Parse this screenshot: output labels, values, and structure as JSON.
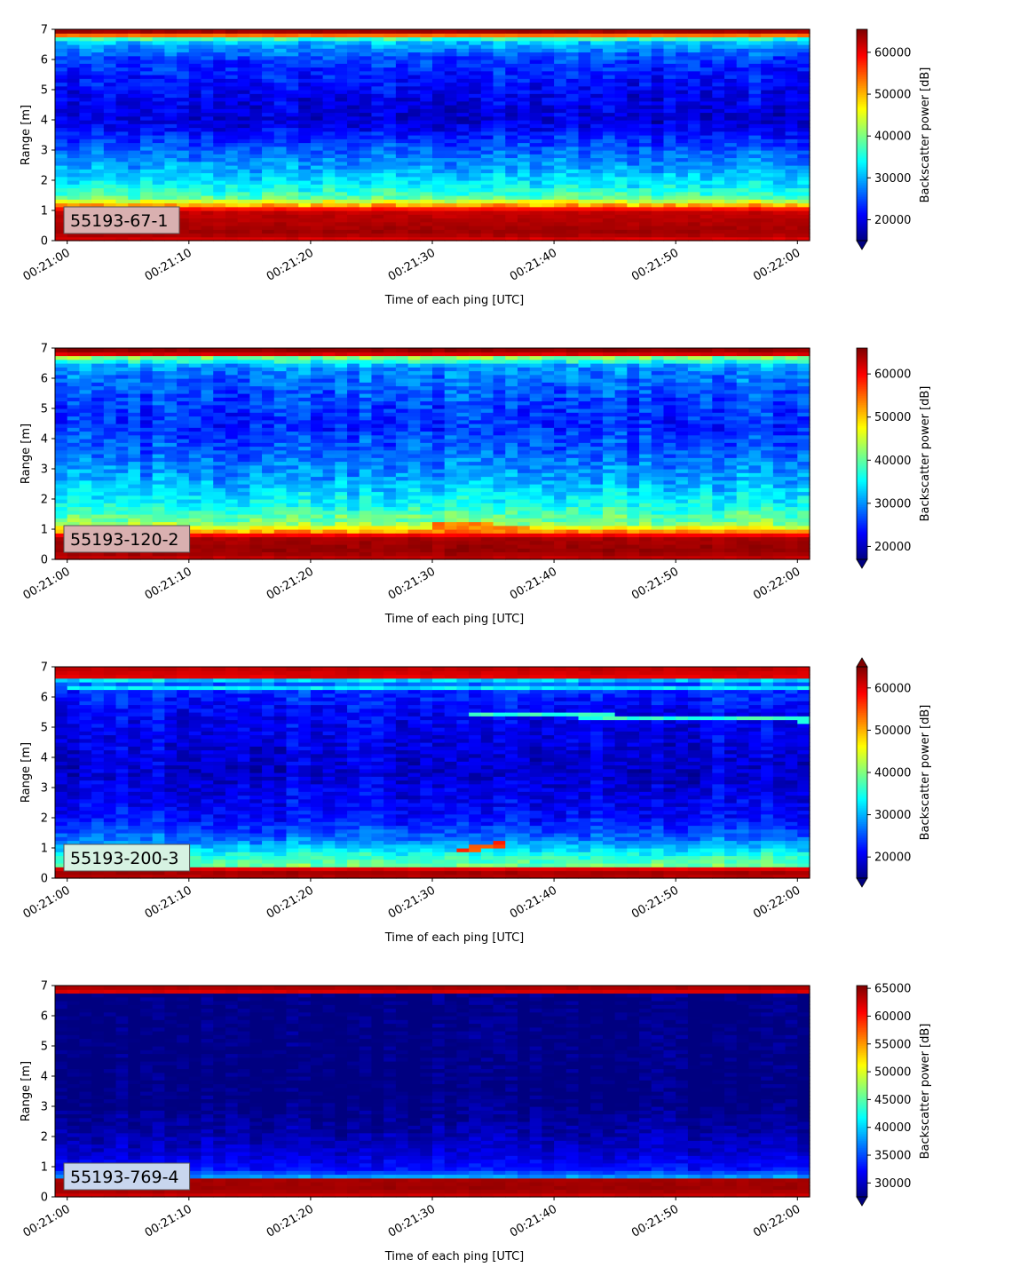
{
  "chart_data": [
    {
      "type": "heatmap",
      "panel_label": "55193-67-1",
      "label_box_color": "#d9b0b0",
      "xlabel": "Time of each ping [UTC]",
      "ylabel": "Range [m]",
      "x_ticks": [
        "00:21:00",
        "00:21:10",
        "00:21:20",
        "00:21:30",
        "00:21:40",
        "00:21:50",
        "00:22:00"
      ],
      "xlim_seconds": [
        -1,
        61
      ],
      "y_ticks": [
        "0",
        "1",
        "2",
        "3",
        "4",
        "5",
        "6",
        "7"
      ],
      "ylim": [
        0,
        7
      ],
      "colorbar_label": "Backscatter power [dB]",
      "colorbar_ticks": [
        "20000",
        "30000",
        "40000",
        "50000",
        "60000"
      ],
      "colorbar_range": [
        15000,
        65500
      ],
      "colorbar_extend": "min",
      "colormap": "jet",
      "profile": [
        {
          "range": 0.0,
          "value": 60000
        },
        {
          "range": 0.25,
          "value": 64000
        },
        {
          "range": 1.0,
          "value": 62000
        },
        {
          "range": 1.2,
          "value": 50000
        },
        {
          "range": 1.45,
          "value": 38000
        },
        {
          "range": 1.9,
          "value": 33000
        },
        {
          "range": 2.5,
          "value": 29000
        },
        {
          "range": 3.0,
          "value": 26000
        },
        {
          "range": 4.0,
          "value": 19000
        },
        {
          "range": 5.0,
          "value": 21000
        },
        {
          "range": 6.0,
          "value": 24000
        },
        {
          "range": 6.55,
          "value": 30000
        },
        {
          "range": 6.75,
          "value": 40000
        },
        {
          "range": 6.85,
          "value": 62000
        },
        {
          "range": 7.0,
          "value": 65000
        }
      ],
      "noise": 3200,
      "features": []
    },
    {
      "type": "heatmap",
      "panel_label": "55193-120-2",
      "label_box_color": "#d9b0b0",
      "xlabel": "Time of each ping [UTC]",
      "ylabel": "Range [m]",
      "x_ticks": [
        "00:21:00",
        "00:21:10",
        "00:21:20",
        "00:21:30",
        "00:21:40",
        "00:21:50",
        "00:22:00"
      ],
      "xlim_seconds": [
        -1,
        61
      ],
      "y_ticks": [
        "0",
        "1",
        "2",
        "3",
        "4",
        "5",
        "6",
        "7"
      ],
      "ylim": [
        0,
        7
      ],
      "colorbar_label": "Backscatter power [dB]",
      "colorbar_ticks": [
        "20000",
        "30000",
        "40000",
        "50000",
        "60000"
      ],
      "colorbar_range": [
        17000,
        66000
      ],
      "colorbar_extend": "min",
      "colormap": "jet",
      "profile": [
        {
          "range": 0.0,
          "value": 62000
        },
        {
          "range": 0.25,
          "value": 65000
        },
        {
          "range": 0.75,
          "value": 64000
        },
        {
          "range": 0.95,
          "value": 52000
        },
        {
          "range": 1.2,
          "value": 42000
        },
        {
          "range": 1.8,
          "value": 36000
        },
        {
          "range": 2.5,
          "value": 32000
        },
        {
          "range": 3.5,
          "value": 28000
        },
        {
          "range": 4.5,
          "value": 25000
        },
        {
          "range": 5.5,
          "value": 27000
        },
        {
          "range": 6.4,
          "value": 30000
        },
        {
          "range": 6.7,
          "value": 42000
        },
        {
          "range": 6.82,
          "value": 63000
        },
        {
          "range": 7.0,
          "value": 66000
        }
      ],
      "noise": 3500,
      "features": [
        {
          "t0": 30,
          "t1": 38,
          "r0": 1.05,
          "r1": 0.95,
          "thick": 0.35,
          "value": 54000
        }
      ]
    },
    {
      "type": "heatmap",
      "panel_label": "55193-200-3",
      "label_box_color": "#d6f2e2",
      "xlabel": "Time of each ping [UTC]",
      "ylabel": "Range [m]",
      "x_ticks": [
        "00:21:00",
        "00:21:10",
        "00:21:20",
        "00:21:30",
        "00:21:40",
        "00:21:50",
        "00:22:00"
      ],
      "xlim_seconds": [
        -1,
        61
      ],
      "y_ticks": [
        "0",
        "1",
        "2",
        "3",
        "4",
        "5",
        "6",
        "7"
      ],
      "ylim": [
        0,
        7
      ],
      "colorbar_label": "Backscatter power [dB]",
      "colorbar_ticks": [
        "20000",
        "30000",
        "40000",
        "50000",
        "60000"
      ],
      "colorbar_range": [
        15000,
        65000
      ],
      "colorbar_extend": "both",
      "colormap": "jet",
      "profile": [
        {
          "range": 0.0,
          "value": 62000
        },
        {
          "range": 0.3,
          "value": 64000
        },
        {
          "range": 0.38,
          "value": 40000
        },
        {
          "range": 0.8,
          "value": 35000
        },
        {
          "range": 1.3,
          "value": 27000
        },
        {
          "range": 2.0,
          "value": 22000
        },
        {
          "range": 3.5,
          "value": 19000
        },
        {
          "range": 5.5,
          "value": 21000
        },
        {
          "range": 6.3,
          "value": 24000
        },
        {
          "range": 6.55,
          "value": 28000
        },
        {
          "range": 6.65,
          "value": 60000
        },
        {
          "range": 7.0,
          "value": 62000
        }
      ],
      "noise": 3000,
      "features": [
        {
          "t0": 32,
          "t1": 36,
          "r0": 0.9,
          "r1": 1.15,
          "thick": 0.12,
          "value": 56000
        },
        {
          "t0": 33,
          "t1": 61,
          "r0": 5.45,
          "r1": 5.25,
          "thick": 0.1,
          "value": 36000
        },
        {
          "t0": 0,
          "t1": 61,
          "r0": 6.35,
          "r1": 6.3,
          "thick": 0.08,
          "value": 33000
        }
      ]
    },
    {
      "type": "heatmap",
      "panel_label": "55193-769-4",
      "label_box_color": "#c8d6ee",
      "xlabel": "Time of each ping [UTC]",
      "ylabel": "Range [m]",
      "x_ticks": [
        "00:21:00",
        "00:21:10",
        "00:21:20",
        "00:21:30",
        "00:21:40",
        "00:21:50",
        "00:22:00"
      ],
      "xlim_seconds": [
        -1,
        61
      ],
      "y_ticks": [
        "0",
        "1",
        "2",
        "3",
        "4",
        "5",
        "6",
        "7"
      ],
      "ylim": [
        0,
        7
      ],
      "colorbar_label": "Backscatter power [dB]",
      "colorbar_ticks": [
        "30000",
        "35000",
        "40000",
        "45000",
        "50000",
        "55000",
        "60000",
        "65000"
      ],
      "colorbar_range": [
        27500,
        65500
      ],
      "colorbar_extend": "min",
      "colormap": "jet",
      "profile": [
        {
          "range": 0.0,
          "value": 62000
        },
        {
          "range": 0.25,
          "value": 64500
        },
        {
          "range": 0.6,
          "value": 64000
        },
        {
          "range": 0.68,
          "value": 38000
        },
        {
          "range": 0.9,
          "value": 33000
        },
        {
          "range": 1.5,
          "value": 30500
        },
        {
          "range": 2.5,
          "value": 28500
        },
        {
          "range": 3.2,
          "value": 27500
        },
        {
          "range": 6.7,
          "value": 27500
        },
        {
          "range": 6.8,
          "value": 62000
        },
        {
          "range": 7.0,
          "value": 64500
        }
      ],
      "noise": 1500,
      "features": []
    }
  ]
}
